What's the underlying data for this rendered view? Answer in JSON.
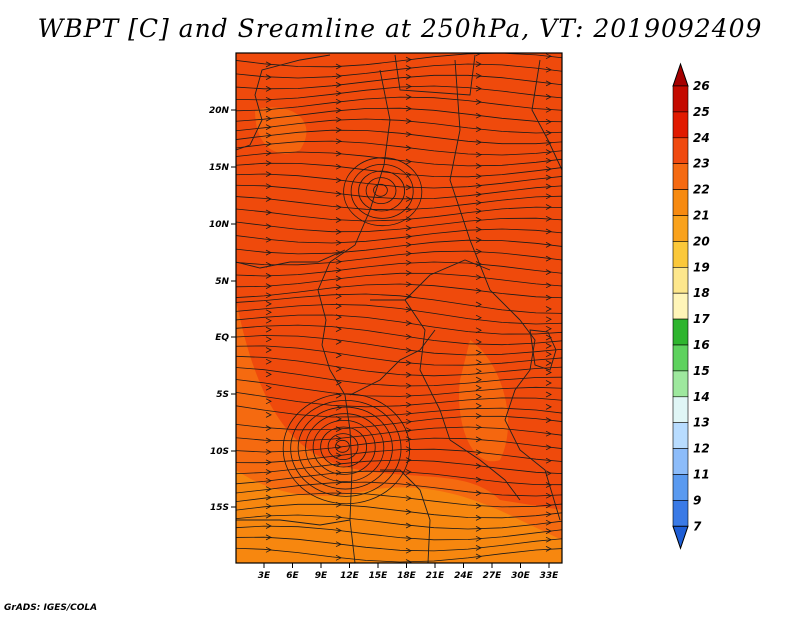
{
  "title": "WBPT [C] and Sreamline at 250hPa, VT: 2019092409",
  "credit": "GrADS: IGES/COLA",
  "map": {
    "lat_ticks": [
      "20N",
      "15N",
      "10N",
      "5N",
      "EQ",
      "5S",
      "10S",
      "15S"
    ],
    "lon_ticks": [
      "3E",
      "6E",
      "9E",
      "12E",
      "15E",
      "18E",
      "21E",
      "24E",
      "27E",
      "30E",
      "33E"
    ],
    "background_color": "#ef4a0c",
    "warm_patch_color": "#f56a10",
    "orange_patch_color": "#f7920f",
    "boundary_color": "#202020",
    "streamline_color": "#1a1a1a"
  },
  "colorbar": {
    "labels": [
      "26",
      "25",
      "24",
      "23",
      "22",
      "21",
      "20",
      "19",
      "18",
      "17",
      "16",
      "15",
      "14",
      "13",
      "12",
      "11",
      "9",
      "7"
    ],
    "colors": [
      "#a50000",
      "#c40a00",
      "#e11a00",
      "#f04a10",
      "#f56a12",
      "#f78a10",
      "#f9a21c",
      "#fbc83a",
      "#fde78c",
      "#fff5b8",
      "#2eb52e",
      "#5ed25e",
      "#9ee89e",
      "#e0f6f6",
      "#b8dcff",
      "#8cbcfa",
      "#5a9af0",
      "#3a7ae6",
      "#1e5ed6"
    ]
  }
}
